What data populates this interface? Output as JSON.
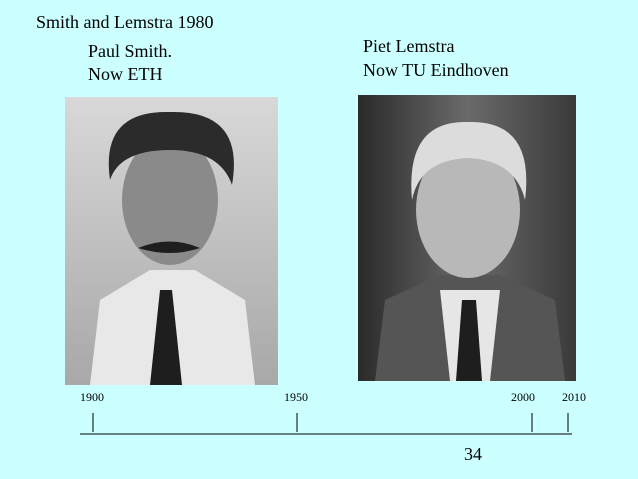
{
  "slide": {
    "title": "Smith and Lemstra 1980",
    "left_caption": [
      "Paul Smith.",
      "Now ETH"
    ],
    "right_caption": [
      "Piet Lemstra",
      "Now TU Eindhoven"
    ],
    "timeline": [
      1900,
      1950,
      2000,
      2010
    ],
    "page_number": 34
  }
}
